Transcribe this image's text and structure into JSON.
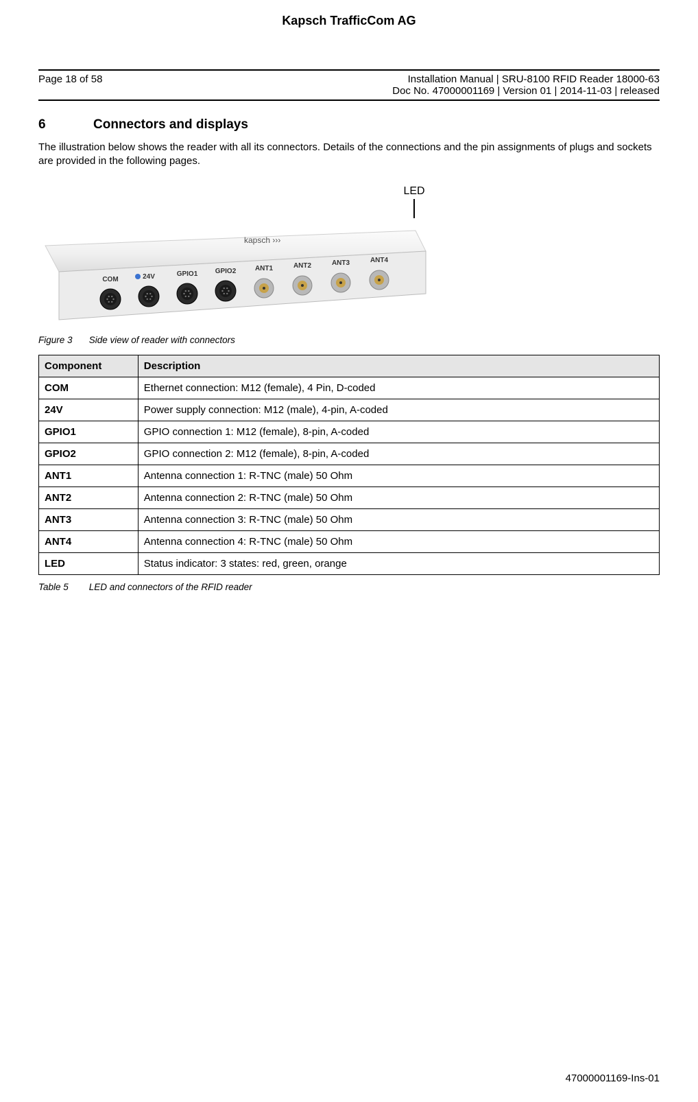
{
  "company": "Kapsch TrafficCom AG",
  "header": {
    "page_info": "Page 18 of 58",
    "doc_title": "Installation Manual | SRU-8100 RFID Reader 18000-63",
    "doc_meta": "Doc No. 47000001169 | Version 01 | 2014-11-03 | released"
  },
  "section": {
    "number": "6",
    "title": "Connectors and displays"
  },
  "intro": "The illustration below shows the reader with all its connectors. Details of the connections and the pin assignments of plugs and sockets are provided in the following pages.",
  "figure": {
    "led_label": "LED",
    "caption_label": "Figure 3",
    "caption_text": "Side view of reader with connectors",
    "device": {
      "body_top_color": "#f6f6f6",
      "body_bottom_color": "#e8e8e8",
      "brand": "kapsch",
      "port_labels": [
        "COM",
        "24V",
        "GPIO1",
        "GPIO2",
        "ANT1",
        "ANT2",
        "ANT3",
        "ANT4"
      ],
      "power_dot_color": "#3b73d1",
      "port_color": "#2a2a2a",
      "tnc_inner_color": "#c7a24a",
      "label_text_color": "#333333"
    }
  },
  "table": {
    "headers": [
      "Component",
      "Description"
    ],
    "rows": [
      [
        "COM",
        "Ethernet connection: M12 (female), 4 Pin, D-coded"
      ],
      [
        "24V",
        "Power supply connection: M12 (male), 4-pin, A-coded"
      ],
      [
        "GPIO1",
        "GPIO connection 1: M12 (female), 8-pin, A-coded"
      ],
      [
        "GPIO2",
        "GPIO connection 2: M12 (female), 8-pin, A-coded"
      ],
      [
        "ANT1",
        "Antenna connection 1: R-TNC (male) 50 Ohm"
      ],
      [
        "ANT2",
        "Antenna connection 2: R-TNC (male) 50 Ohm"
      ],
      [
        "ANT3",
        "Antenna connection 3: R-TNC (male) 50 Ohm"
      ],
      [
        "ANT4",
        "Antenna connection 4: R-TNC (male) 50 Ohm"
      ],
      [
        "LED",
        "Status indicator: 3 states: red, green, orange"
      ]
    ],
    "caption_label": "Table 5",
    "caption_text": "LED and connectors of the RFID reader"
  },
  "footer": "47000001169-Ins-01"
}
